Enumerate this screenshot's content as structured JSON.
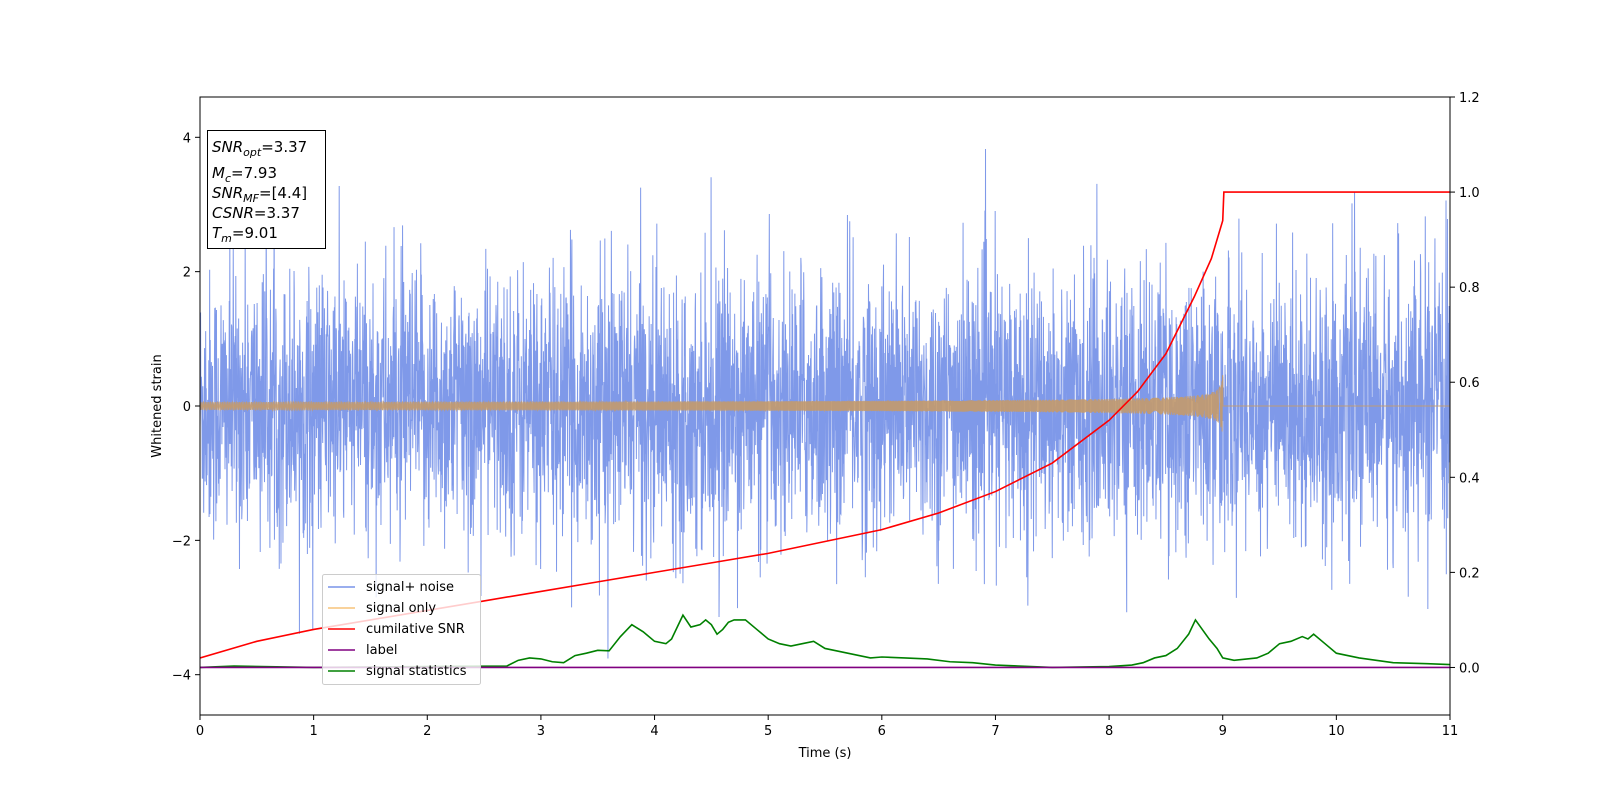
{
  "chart_data": {
    "type": "line",
    "xlabel": "Time (s)",
    "ylabel": "Whitened strain",
    "xlim": [
      0,
      11
    ],
    "ylim_left": [
      -4.6,
      4.6
    ],
    "ylim_right": [
      -0.1,
      1.2
    ],
    "x_ticks": [
      "0",
      "1",
      "2",
      "3",
      "4",
      "5",
      "6",
      "7",
      "8",
      "9",
      "10",
      "11"
    ],
    "y_ticks_left": [
      "−4",
      "−2",
      "0",
      "2",
      "4"
    ],
    "y_ticks_right": [
      "0.0",
      "0.2",
      "0.4",
      "0.6",
      "0.8",
      "1.0",
      "1.2"
    ],
    "grid": false,
    "legend_placement": "lower-left",
    "annotation": {
      "snr_opt_main": "SNR",
      "snr_opt_sub": "opt",
      "snr_opt_value": "=3.37",
      "mc_main": "M",
      "mc_sub": "c",
      "mc_value": "=7.93",
      "snr_mf_main": "SNR",
      "snr_mf_sub": "MF",
      "snr_mf_value": "=[4.4]",
      "csnr_main": "CSNR",
      "csnr_value": "=3.37",
      "tm_main": "T",
      "tm_sub": "m",
      "tm_value": "=9.01"
    },
    "series": [
      {
        "name": "signal+ noise",
        "color": "#7893e8",
        "axis": "left",
        "description_values": {
          "noise_std": 1.0,
          "spike_max": 4.17,
          "spike_min": -4.1
        }
      },
      {
        "name": "signal only",
        "color": "#f7c47a",
        "axis": "left",
        "merger_time": 9.0,
        "peak_amplitude": 0.5
      },
      {
        "name": "cumilative SNR",
        "color": "#ff0000",
        "axis": "right",
        "x": [
          0,
          0.5,
          1,
          1.5,
          2,
          2.5,
          3,
          3.5,
          4,
          4.5,
          5,
          5.5,
          6,
          6.5,
          7,
          7.5,
          8,
          8.25,
          8.5,
          8.75,
          8.9,
          9.0,
          9.01,
          11
        ],
        "y": [
          0.02,
          0.055,
          0.08,
          0.1,
          0.12,
          0.14,
          0.16,
          0.18,
          0.2,
          0.22,
          0.24,
          0.265,
          0.29,
          0.325,
          0.37,
          0.43,
          0.52,
          0.58,
          0.66,
          0.78,
          0.86,
          0.94,
          1.0,
          1.0
        ]
      },
      {
        "name": "label",
        "color": "#800080",
        "axis": "right",
        "x": [
          0,
          11
        ],
        "y": [
          0.0,
          0.0
        ]
      },
      {
        "name": "signal statistics",
        "color": "#008000",
        "axis": "right",
        "x": [
          0,
          0.3,
          1.0,
          2.0,
          2.7,
          2.8,
          2.9,
          3.0,
          3.1,
          3.2,
          3.3,
          3.4,
          3.5,
          3.6,
          3.7,
          3.8,
          3.9,
          4.0,
          4.1,
          4.15,
          4.25,
          4.32,
          4.4,
          4.45,
          4.5,
          4.55,
          4.6,
          4.65,
          4.7,
          4.8,
          4.9,
          5.0,
          5.1,
          5.2,
          5.3,
          5.4,
          5.5,
          5.6,
          5.7,
          5.8,
          5.9,
          6.0,
          6.2,
          6.4,
          6.6,
          6.8,
          7.0,
          7.5,
          8.0,
          8.2,
          8.3,
          8.4,
          8.5,
          8.6,
          8.7,
          8.76,
          8.82,
          8.88,
          8.95,
          9.0,
          9.1,
          9.3,
          9.4,
          9.5,
          9.6,
          9.7,
          9.75,
          9.8,
          9.9,
          10.0,
          10.2,
          10.5,
          10.8,
          11.0
        ],
        "y": [
          0.0,
          0.003,
          0.0,
          0.002,
          0.003,
          0.015,
          0.02,
          0.018,
          0.012,
          0.01,
          0.025,
          0.03,
          0.036,
          0.035,
          0.065,
          0.09,
          0.075,
          0.055,
          0.05,
          0.06,
          0.11,
          0.085,
          0.09,
          0.1,
          0.09,
          0.07,
          0.08,
          0.095,
          0.1,
          0.1,
          0.08,
          0.06,
          0.05,
          0.045,
          0.05,
          0.055,
          0.04,
          0.035,
          0.03,
          0.025,
          0.02,
          0.022,
          0.02,
          0.018,
          0.012,
          0.01,
          0.005,
          0.0,
          0.002,
          0.005,
          0.01,
          0.02,
          0.025,
          0.04,
          0.07,
          0.1,
          0.08,
          0.06,
          0.04,
          0.02,
          0.015,
          0.02,
          0.03,
          0.05,
          0.055,
          0.065,
          0.06,
          0.07,
          0.05,
          0.03,
          0.02,
          0.01,
          0.008,
          0.006
        ]
      }
    ]
  }
}
